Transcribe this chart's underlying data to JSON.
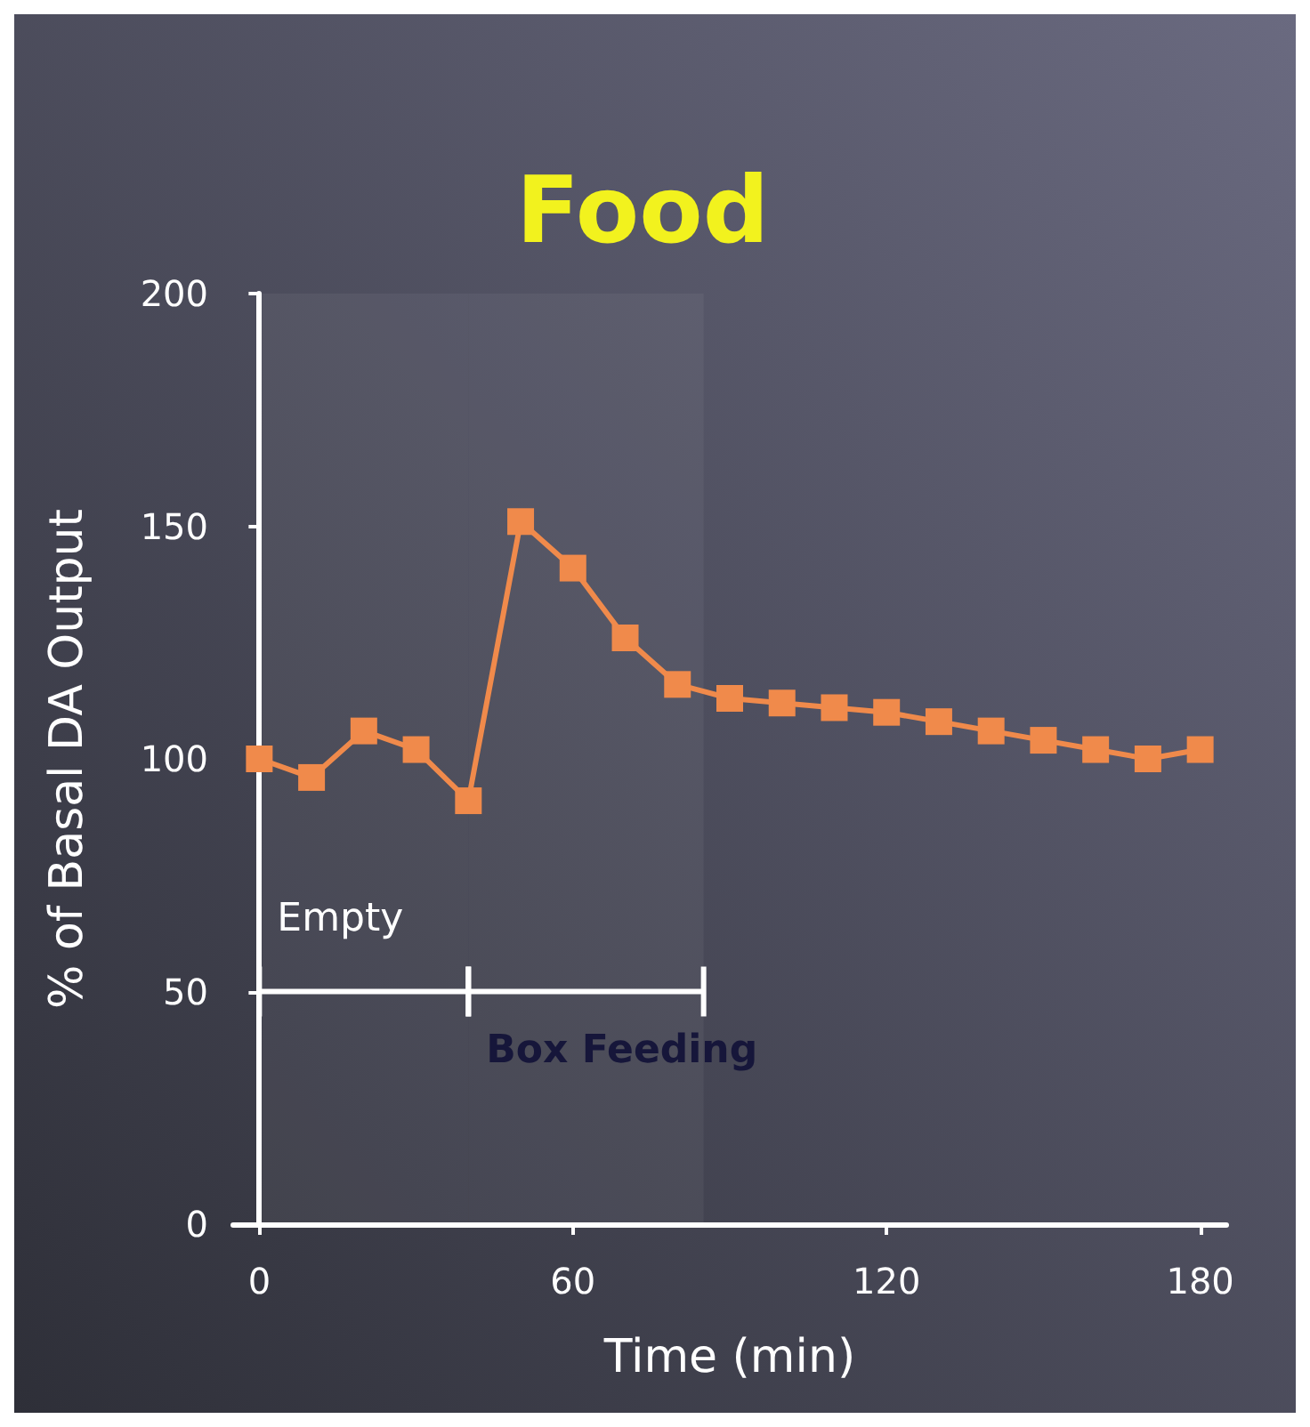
{
  "chart_data": {
    "type": "line",
    "title": "Food",
    "xlabel": "Time (min)",
    "ylabel": "% of Basal DA Output",
    "x": [
      0,
      10,
      20,
      30,
      40,
      50,
      60,
      70,
      80,
      90,
      100,
      110,
      120,
      130,
      140,
      150,
      160,
      170,
      180
    ],
    "series": [
      {
        "color": "#f08a4b",
        "values": [
          100,
          96,
          106,
          102,
          91,
          151,
          141,
          126,
          116,
          113,
          112,
          111,
          110,
          108,
          106,
          104,
          102,
          100,
          102
        ]
      }
    ],
    "xlim": [
      -5,
      185
    ],
    "xticks": [
      0,
      60,
      120,
      180
    ],
    "ylim": [
      0,
      200
    ],
    "yticks": [
      0,
      50,
      100,
      150,
      200
    ],
    "marker": "square",
    "line_style": "solid",
    "grid": false,
    "bands": [
      {
        "axis": "x",
        "from": 0,
        "to": 40,
        "label": "Empty",
        "color": "#ffffff"
      },
      {
        "axis": "x",
        "from": 40,
        "to": 85,
        "label": "Box Feeding",
        "color": "#ffffff"
      }
    ]
  }
}
